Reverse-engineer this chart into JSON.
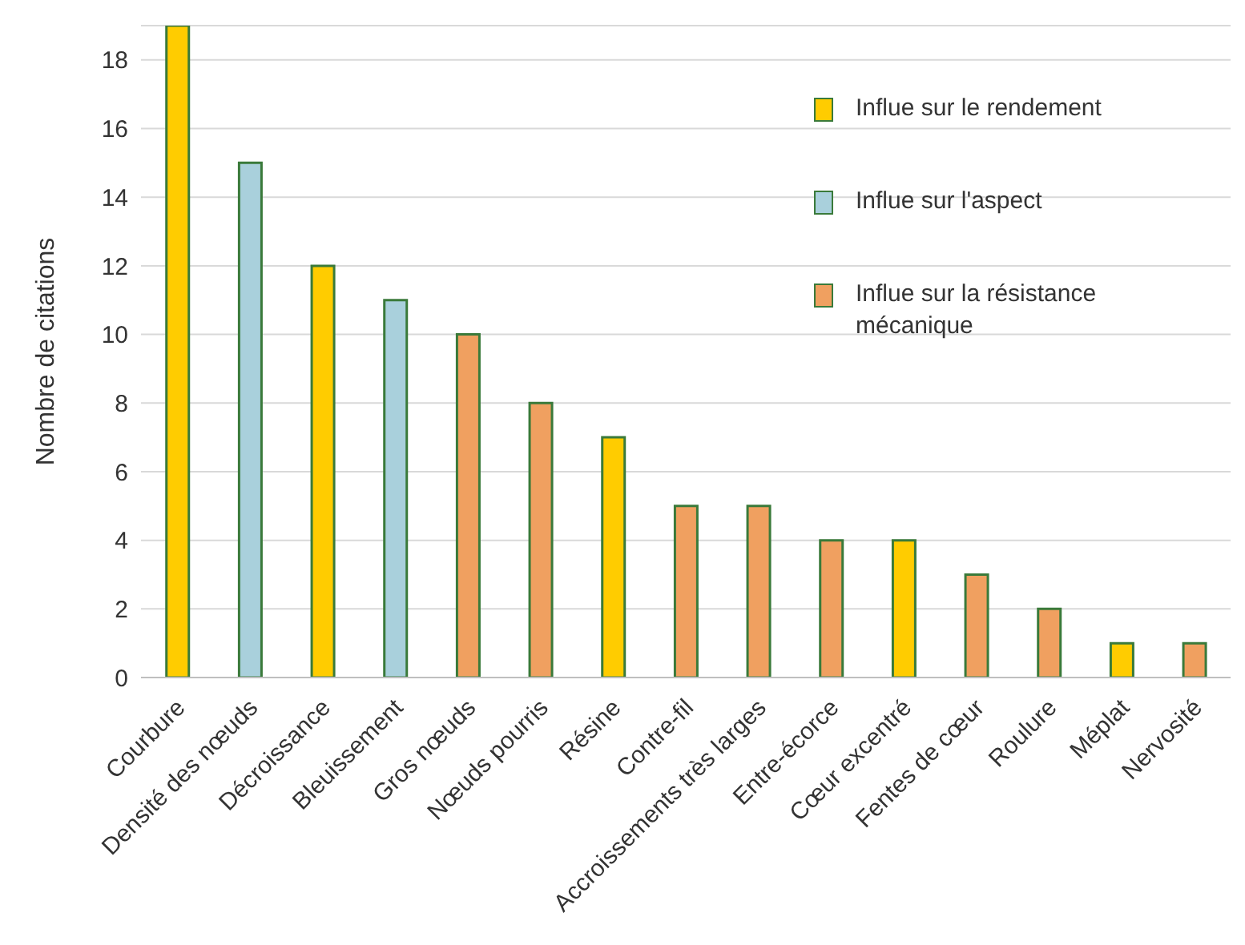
{
  "chart_data": {
    "type": "bar",
    "ylabel": "Nombre de citations",
    "categories": [
      "Courbure",
      "Densité des nœuds",
      "Décroissance",
      "Bleuissement",
      "Gros nœuds",
      "Nœuds pourris",
      "Résine",
      "Contre-fil",
      "Accroissements très larges",
      "Entre-écorce",
      "Cœur excentré",
      "Fentes de cœur",
      "Roulure",
      "Méplat",
      "Nervosité"
    ],
    "series": [
      {
        "name": "Influe sur le rendement",
        "color": "#ffcc00",
        "values": [
          19,
          null,
          12,
          null,
          null,
          null,
          7,
          null,
          null,
          null,
          4,
          null,
          null,
          1,
          null
        ]
      },
      {
        "name": "Influe sur l'aspect",
        "color": "#a9d0dc",
        "values": [
          null,
          15,
          null,
          11,
          null,
          null,
          null,
          null,
          null,
          null,
          null,
          null,
          null,
          null,
          null
        ]
      },
      {
        "name": "Influe sur la résistance mécanique",
        "color": "#f0a060",
        "values": [
          null,
          null,
          null,
          null,
          10,
          8,
          null,
          5,
          5,
          4,
          null,
          3,
          2,
          null,
          1
        ]
      }
    ],
    "stacked": true,
    "ylim": [
      0,
      19
    ],
    "yticks": [
      0,
      2,
      4,
      6,
      8,
      10,
      12,
      14,
      16,
      18
    ],
    "grid": "y",
    "legend": "top right"
  }
}
